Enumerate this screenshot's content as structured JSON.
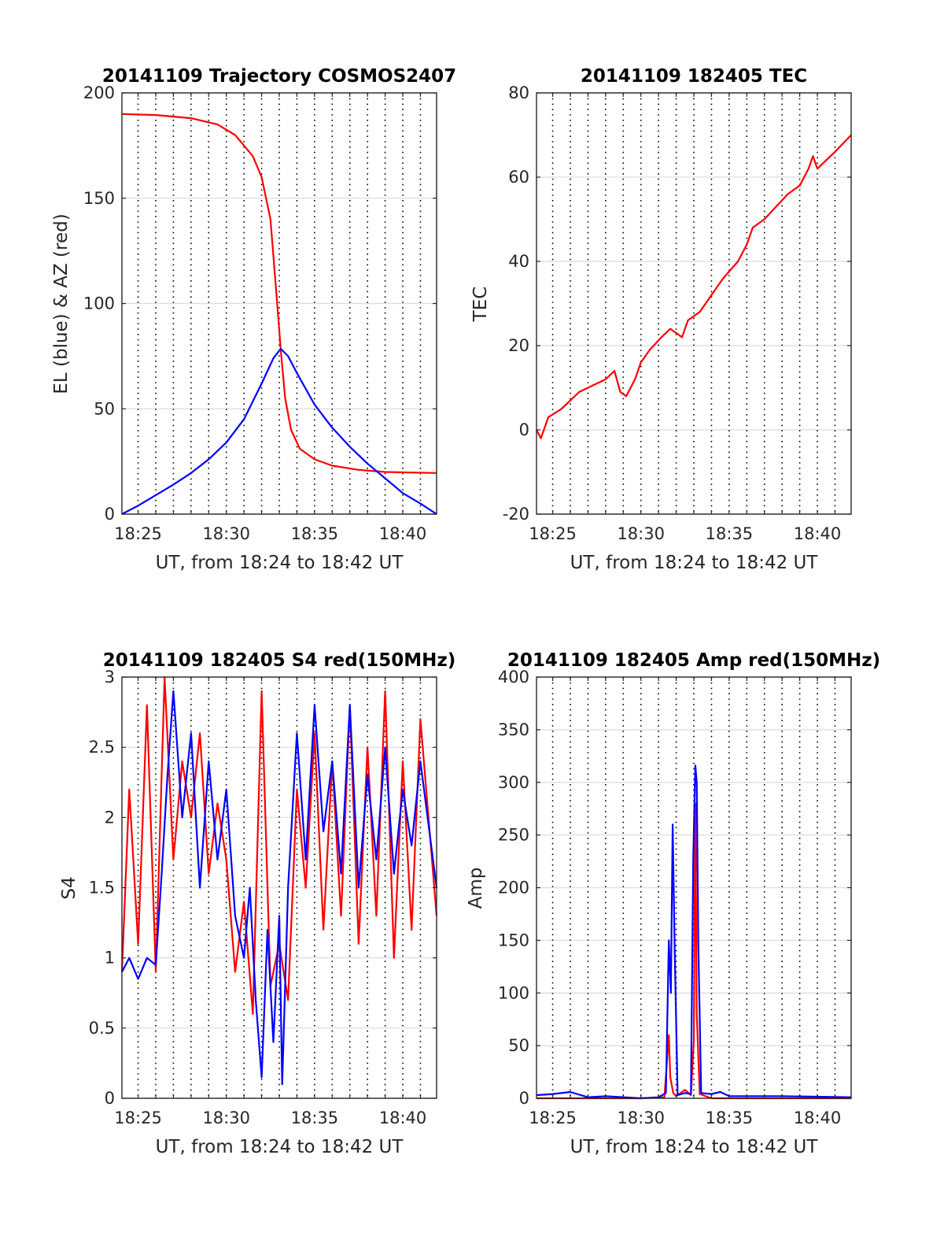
{
  "colors": {
    "el_series": "#0000ff",
    "az_series": "#ff0000",
    "grid_dotted": "#000000",
    "grid_solid": "#dcdcdc"
  },
  "chart_data": [
    {
      "type": "line",
      "title": "20141109 Trajectory COSMOS2407",
      "xlabel": "UT, from 18:24 to 18:42 UT",
      "ylabel": "EL (blue) & AZ (red)",
      "xlim": [
        "18:24:05",
        "18:41:55"
      ],
      "ylim": [
        0,
        200
      ],
      "xticks": [
        "18:25",
        "18:30",
        "18:35",
        "18:40"
      ],
      "yticks": [
        "0",
        "50",
        "100",
        "150",
        "200"
      ],
      "grid": "x dotted every minute, y solid",
      "series": [
        {
          "color": "#ff0000",
          "x": [
            "18:24:05",
            "18:26:00",
            "18:28:00",
            "18:29:30",
            "18:30:30",
            "18:31:30",
            "18:32:00",
            "18:32:30",
            "18:32:50",
            "18:33:05",
            "18:33:20",
            "18:33:40",
            "18:34:10",
            "18:35:00",
            "18:36:00",
            "18:37:30",
            "18:39:00",
            "18:41:55"
          ],
          "y": [
            190,
            189.5,
            188,
            185,
            180,
            170,
            160,
            140,
            105,
            78,
            55,
            40,
            31,
            26,
            23,
            21,
            20,
            19.5
          ]
        },
        {
          "color": "#0000ff",
          "x": [
            "18:24:05",
            "18:25:00",
            "18:26:00",
            "18:27:00",
            "18:28:00",
            "18:29:00",
            "18:30:00",
            "18:31:00",
            "18:32:00",
            "18:32:40",
            "18:33:05",
            "18:33:30",
            "18:34:00",
            "18:35:00",
            "18:36:00",
            "18:37:00",
            "18:38:00",
            "18:39:00",
            "18:40:00",
            "18:41:00",
            "18:41:55"
          ],
          "y": [
            0,
            4,
            9,
            14,
            19.5,
            26,
            34,
            45,
            62,
            74,
            78.5,
            75,
            67,
            52,
            41,
            32,
            24,
            17,
            10,
            5,
            0
          ]
        }
      ]
    },
    {
      "type": "line",
      "title": "20141109 182405 TEC",
      "xlabel": "UT, from 18:24 to 18:42 UT",
      "ylabel": "TEC",
      "xlim": [
        "18:24:05",
        "18:41:55"
      ],
      "ylim": [
        -20,
        80
      ],
      "xticks": [
        "18:25",
        "18:30",
        "18:35",
        "18:40"
      ],
      "yticks": [
        "-20",
        "0",
        "20",
        "40",
        "60",
        "80"
      ],
      "grid": "x dotted every minute, y solid",
      "series": [
        {
          "color": "#ff0000",
          "x": [
            "18:24:05",
            "18:24:20",
            "18:24:45",
            "18:25:30",
            "18:26:30",
            "18:27:30",
            "18:28:00",
            "18:28:30",
            "18:28:50",
            "18:29:10",
            "18:29:40",
            "18:30:00",
            "18:30:30",
            "18:31:10",
            "18:31:40",
            "18:32:00",
            "18:32:20",
            "18:32:40",
            "18:33:20",
            "18:34:00",
            "18:34:40",
            "18:35:30",
            "18:36:00",
            "18:36:20",
            "18:37:00",
            "18:37:40",
            "18:38:20",
            "18:39:00",
            "18:39:30",
            "18:39:45",
            "18:40:00",
            "18:40:30",
            "18:41:00",
            "18:41:55"
          ],
          "y": [
            0,
            -2,
            3,
            5,
            9,
            11,
            12,
            14,
            9,
            8,
            12,
            16,
            19,
            22,
            24,
            23,
            22,
            26,
            28,
            32,
            36,
            40,
            44,
            48,
            50,
            53,
            56,
            58,
            62,
            65,
            62,
            64,
            66,
            70
          ]
        }
      ]
    },
    {
      "type": "line",
      "title": "20141109 182405 S4 red(150MHz)",
      "xlabel": "UT, from 18:24 to 18:42 UT",
      "ylabel": "S4",
      "xlim": [
        "18:24:05",
        "18:41:55"
      ],
      "ylim": [
        0,
        3
      ],
      "xticks": [
        "18:25",
        "18:30",
        "18:35",
        "18:40"
      ],
      "yticks": [
        "0",
        "0.5",
        "1",
        "1.5",
        "2",
        "2.5",
        "3"
      ],
      "grid": "x dotted every minute, y solid",
      "series": [
        {
          "color": "#ff0000",
          "x": [
            "18:24:05",
            "18:24:30",
            "18:25:00",
            "18:25:30",
            "18:26:00",
            "18:26:30",
            "18:27:00",
            "18:27:30",
            "18:28:00",
            "18:28:30",
            "18:29:00",
            "18:29:30",
            "18:30:00",
            "18:30:30",
            "18:31:00",
            "18:31:30",
            "18:32:00",
            "18:32:30",
            "18:33:00",
            "18:33:30",
            "18:34:00",
            "18:34:30",
            "18:35:00",
            "18:35:30",
            "18:36:00",
            "18:36:30",
            "18:37:00",
            "18:37:30",
            "18:38:00",
            "18:38:30",
            "18:39:00",
            "18:39:30",
            "18:40:00",
            "18:40:30",
            "18:41:00",
            "18:41:55"
          ],
          "y": [
            0.9,
            2.2,
            1.1,
            2.8,
            0.9,
            3.0,
            1.7,
            2.4,
            2.0,
            2.6,
            1.6,
            2.1,
            1.7,
            0.9,
            1.4,
            0.6,
            2.9,
            0.8,
            1.1,
            0.7,
            2.2,
            1.5,
            2.6,
            1.2,
            2.4,
            1.3,
            2.8,
            1.1,
            2.5,
            1.3,
            2.9,
            1.0,
            2.4,
            1.2,
            2.7,
            1.3
          ]
        },
        {
          "color": "#0000ff",
          "x": [
            "18:24:05",
            "18:24:30",
            "18:25:00",
            "18:25:30",
            "18:26:00",
            "18:26:20",
            "18:26:40",
            "18:27:00",
            "18:27:30",
            "18:28:00",
            "18:28:30",
            "18:29:00",
            "18:29:30",
            "18:30:00",
            "18:30:30",
            "18:31:00",
            "18:31:20",
            "18:31:40",
            "18:32:00",
            "18:32:20",
            "18:32:40",
            "18:33:00",
            "18:33:10",
            "18:33:30",
            "18:34:00",
            "18:34:30",
            "18:35:00",
            "18:35:30",
            "18:36:00",
            "18:36:30",
            "18:37:00",
            "18:37:30",
            "18:38:00",
            "18:38:30",
            "18:39:00",
            "18:39:30",
            "18:40:00",
            "18:40:30",
            "18:41:00",
            "18:41:55"
          ],
          "y": [
            0.9,
            1.0,
            0.85,
            1.0,
            0.95,
            1.6,
            2.3,
            2.9,
            2.0,
            2.6,
            1.5,
            2.4,
            1.7,
            2.2,
            1.3,
            1.0,
            1.5,
            0.7,
            0.15,
            1.2,
            0.4,
            1.3,
            0.1,
            1.5,
            2.6,
            1.7,
            2.8,
            1.9,
            2.4,
            1.6,
            2.8,
            1.5,
            2.3,
            1.7,
            2.5,
            1.6,
            2.2,
            1.8,
            2.4,
            1.5
          ]
        }
      ]
    },
    {
      "type": "line",
      "title": "20141109 182405 Amp red(150MHz)",
      "xlabel": "UT, from 18:24 to 18:42 UT",
      "ylabel": "Amp",
      "xlim": [
        "18:24:05",
        "18:41:55"
      ],
      "ylim": [
        0,
        400
      ],
      "xticks": [
        "18:25",
        "18:30",
        "18:35",
        "18:40"
      ],
      "yticks": [
        "0",
        "50",
        "100",
        "150",
        "200",
        "250",
        "300",
        "350",
        "400"
      ],
      "grid": "x dotted every minute, y solid",
      "series": [
        {
          "color": "#ff0000",
          "x": [
            "18:24:05",
            "18:30:00",
            "18:31:20",
            "18:31:35",
            "18:31:40",
            "18:31:50",
            "18:32:00",
            "18:32:30",
            "18:32:50",
            "18:33:00",
            "18:33:05",
            "18:33:10",
            "18:33:20",
            "18:34:00",
            "18:41:55"
          ],
          "y": [
            0,
            0,
            1,
            60,
            20,
            5,
            2,
            8,
            3,
            55,
            280,
            80,
            4,
            0,
            0
          ]
        },
        {
          "color": "#0000ff",
          "x": [
            "18:24:05",
            "18:25:00",
            "18:26:00",
            "18:27:00",
            "18:28:00",
            "18:30:00",
            "18:31:00",
            "18:31:25",
            "18:31:35",
            "18:31:42",
            "18:31:48",
            "18:31:55",
            "18:32:05",
            "18:32:30",
            "18:32:50",
            "18:32:58",
            "18:33:05",
            "18:33:10",
            "18:33:15",
            "18:33:25",
            "18:34:00",
            "18:34:30",
            "18:35:00",
            "18:38:00",
            "18:41:55"
          ],
          "y": [
            3,
            4,
            6,
            1,
            2,
            0,
            1,
            5,
            150,
            100,
            260,
            140,
            3,
            5,
            4,
            230,
            316,
            300,
            150,
            5,
            4,
            6,
            2,
            2,
            1
          ]
        }
      ]
    }
  ]
}
